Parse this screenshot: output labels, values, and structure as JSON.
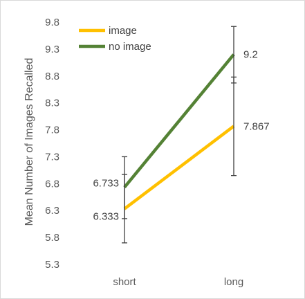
{
  "chart_data": {
    "type": "line",
    "title": "",
    "xlabel": "",
    "ylabel": "Mean Number of Images Recalled",
    "categories": [
      "short",
      "long"
    ],
    "ylim": [
      5.3,
      9.8
    ],
    "yticks": [
      "5.3",
      "5.8",
      "6.3",
      "6.8",
      "7.3",
      "7.8",
      "8.3",
      "8.8",
      "9.3",
      "9.8"
    ],
    "grid": false,
    "legend_position": "top-left",
    "series": [
      {
        "name": "image",
        "color": "#ffc000",
        "values": [
          6.333,
          7.867
        ],
        "labels": [
          "6.333",
          "7.867"
        ],
        "error": [
          [
            6.15,
            6.97
          ],
          [
            6.95,
            8.78
          ]
        ]
      },
      {
        "name": "no image",
        "color": "#548235",
        "values": [
          6.733,
          9.2
        ],
        "labels": [
          "6.733",
          "9.2"
        ],
        "error": [
          [
            5.7,
            7.3
          ],
          [
            8.67,
            9.72
          ]
        ]
      }
    ]
  }
}
